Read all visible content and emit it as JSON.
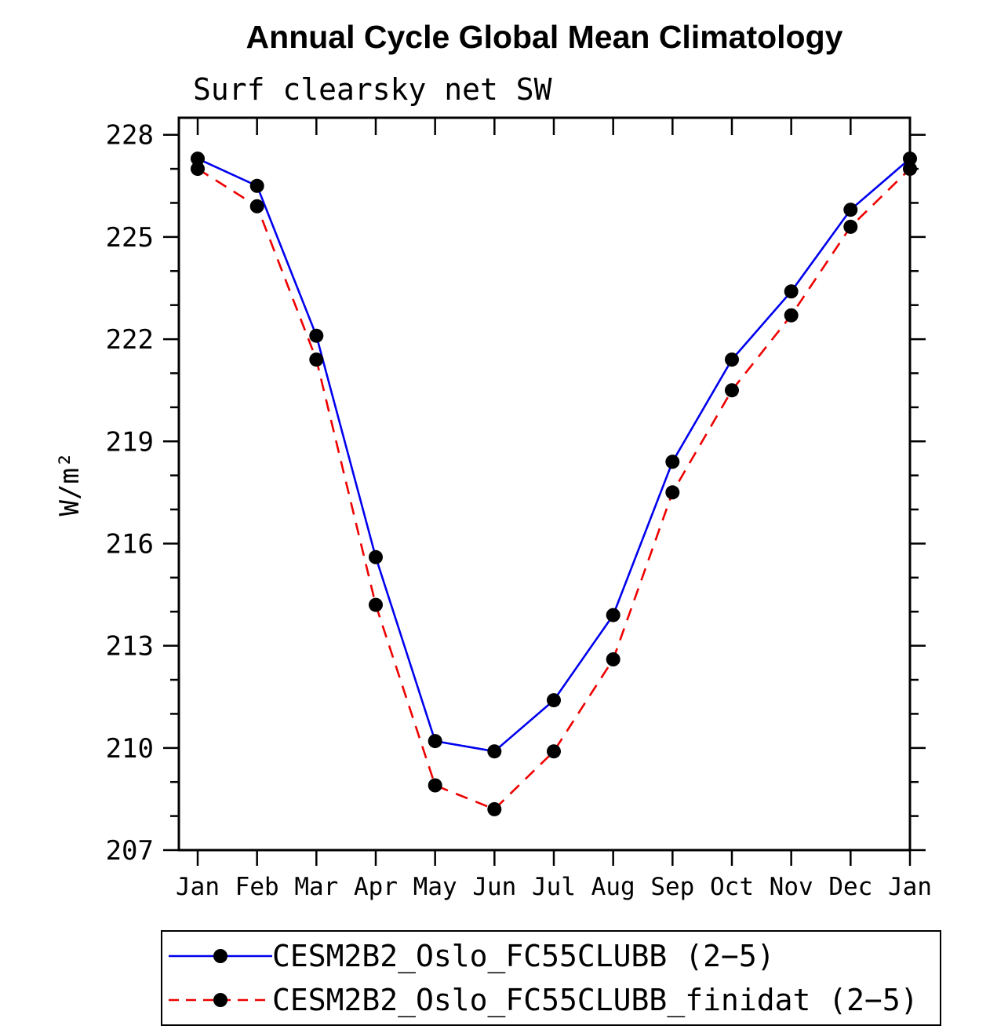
{
  "title": "Annual Cycle Global Mean Climatology",
  "chart_data": {
    "type": "line",
    "title": "Annual Cycle Global Mean Climatology",
    "subtitle": "Surf clearsky net SW",
    "ylabel": "W/m²",
    "xlabel": "",
    "categories": [
      "Jan",
      "Feb",
      "Mar",
      "Apr",
      "May",
      "Jun",
      "Jul",
      "Aug",
      "Sep",
      "Oct",
      "Nov",
      "Dec",
      "Jan"
    ],
    "yticks": [
      207,
      210,
      213,
      216,
      219,
      222,
      225,
      228
    ],
    "ylim": [
      207,
      228.5
    ],
    "grid": false,
    "legend_position": "bottom",
    "marker_color": "#000000",
    "series": [
      {
        "name": "CESM2B2_Oslo_FC55CLUBB (2−5)",
        "color": "#0000ee",
        "style": "solid",
        "values": [
          227.3,
          226.5,
          222.1,
          215.6,
          210.2,
          209.9,
          211.4,
          213.9,
          218.4,
          221.4,
          223.4,
          225.8,
          227.3
        ]
      },
      {
        "name": "CESM2B2_Oslo_FC55CLUBB_finidat (2−5)",
        "color": "#ee0000",
        "style": "dashed",
        "values": [
          227.0,
          225.9,
          221.4,
          214.2,
          208.9,
          208.2,
          209.9,
          212.6,
          217.5,
          220.5,
          222.7,
          225.3,
          227.0
        ]
      }
    ]
  }
}
